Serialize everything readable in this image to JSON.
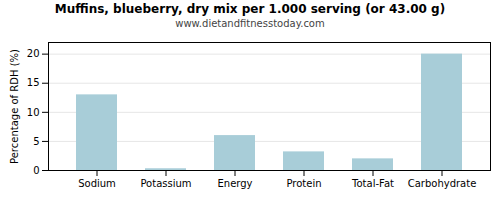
{
  "chart_data": {
    "type": "bar",
    "title": "Muffins, blueberry, dry mix per 1.000 serving (or 43.00 g)",
    "subtitle": "www.dietandfitnesstoday.com",
    "categories": [
      "Sodium",
      "Potassium",
      "Energy",
      "Protein",
      "Total-Fat",
      "Carbohydrate"
    ],
    "values": [
      13,
      0.3,
      6,
      3.2,
      2,
      20
    ],
    "color": "#a8cdd8",
    "ylabel": "Percentage of RDH (%)",
    "ylim": [
      0,
      22
    ],
    "yticks": [
      0,
      5,
      10,
      15,
      20
    ],
    "grid": true
  }
}
